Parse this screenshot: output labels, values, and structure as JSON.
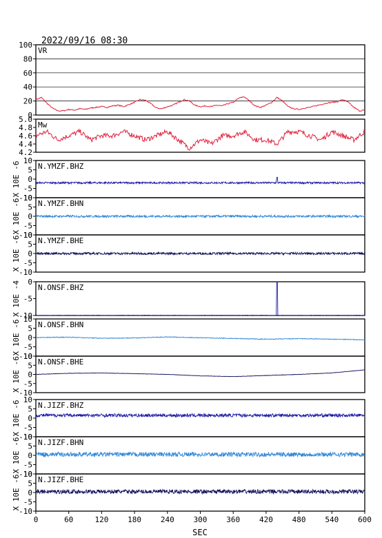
{
  "header": {
    "datetime": "2022/09/16 08:30"
  },
  "xaxis": {
    "label": "SEC",
    "range": [
      0,
      600
    ],
    "ticks": [
      "0",
      "60",
      "120",
      "180",
      "240",
      "300",
      "360",
      "420",
      "480",
      "540",
      "600"
    ]
  },
  "panels": [
    {
      "id": "vr",
      "label": "VR",
      "ylim": [
        0,
        100
      ],
      "ticks": [
        "100",
        "80",
        "60",
        "40",
        "20",
        "0"
      ],
      "tick_values": [
        100,
        80,
        60,
        40,
        20,
        0
      ],
      "grid": true,
      "color": "#e0203c"
    },
    {
      "id": "mw",
      "label": "Mw",
      "ylim": [
        4.2,
        5.0
      ],
      "ticks": [
        "5.0",
        "4.8",
        "4.6",
        "4.4",
        "4.2"
      ],
      "tick_values": [
        5.0,
        4.8,
        4.6,
        4.4,
        4.2
      ],
      "grid": false,
      "color": "#e0203c"
    },
    {
      "id": "ymz-bhz",
      "label": "N.YMZF.BHZ",
      "ylabel": "X 10E -6",
      "ylim": [
        -10,
        10
      ],
      "ticks": [
        "10",
        "5",
        "0",
        "-5",
        "-10"
      ],
      "tick_values": [
        10,
        5,
        0,
        -5,
        -10
      ],
      "color": "#1a1aa8"
    },
    {
      "id": "ymz-bhn",
      "label": "N.YMZF.BHN",
      "ylabel": "X 10E -6",
      "ylim": [
        -10,
        10
      ],
      "ticks": [
        "10",
        "5",
        "0",
        "-5",
        "-10"
      ],
      "tick_values": [
        10,
        5,
        0,
        -5,
        -10
      ],
      "color": "#2e86d8"
    },
    {
      "id": "ymz-bhe",
      "label": "N.YMZF.BHE",
      "ylabel": "X 10E -6",
      "ylim": [
        -10,
        10
      ],
      "ticks": [
        "10",
        "5",
        "0",
        "-5",
        "-10"
      ],
      "tick_values": [
        10,
        5,
        0,
        -5,
        -10
      ],
      "color": "#10105a"
    },
    {
      "id": "ons-bhz",
      "label": "N.ONSF.BHZ",
      "ylabel": "X 10E -4",
      "ylim": [
        -10,
        0
      ],
      "ticks": [
        "0",
        "-5",
        "-10"
      ],
      "tick_values": [
        0,
        -5,
        -10
      ],
      "color": "#1a1aa8"
    },
    {
      "id": "ons-bhn",
      "label": "N.ONSF.BHN",
      "ylabel": "X 10E -6",
      "ylim": [
        -10,
        10
      ],
      "ticks": [
        "10",
        "5",
        "0",
        "-5",
        "-10"
      ],
      "tick_values": [
        10,
        5,
        0,
        -5,
        -10
      ],
      "color": "#2e86d8"
    },
    {
      "id": "ons-bhe",
      "label": "N.ONSF.BHE",
      "ylabel": "X 10E -6",
      "ylim": [
        -10,
        10
      ],
      "ticks": [
        "10",
        "5",
        "0",
        "-5",
        "-10"
      ],
      "tick_values": [
        10,
        5,
        0,
        -5,
        -10
      ],
      "color": "#10105a"
    },
    {
      "id": "jiz-bhz",
      "label": "N.JIZF.BHZ",
      "ylabel": "X 10E -6",
      "ylim": [
        -10,
        10
      ],
      "ticks": [
        "10",
        "5",
        "0",
        "-5",
        "-10"
      ],
      "tick_values": [
        10,
        5,
        0,
        -5,
        -10
      ],
      "color": "#1a1aa8"
    },
    {
      "id": "jiz-bhn",
      "label": "N.JIZF.BHN",
      "ylabel": "X 10E -6",
      "ylim": [
        -10,
        10
      ],
      "ticks": [
        "10",
        "5",
        "0",
        "-5",
        "-10"
      ],
      "tick_values": [
        10,
        5,
        0,
        -5,
        -10
      ],
      "color": "#2e86d8"
    },
    {
      "id": "jiz-bhe",
      "label": "N.JIZF.BHE",
      "ylabel": "X 10E -6",
      "ylim": [
        -10,
        10
      ],
      "ticks": [
        "10",
        "5",
        "0",
        "-5",
        "-10"
      ],
      "tick_values": [
        10,
        5,
        0,
        -5,
        -10
      ],
      "color": "#10105a"
    }
  ],
  "chart_data": {
    "type": "line",
    "x_range": [
      0,
      600
    ],
    "series": [
      {
        "name": "VR",
        "x": [
          0,
          10,
          20,
          30,
          40,
          50,
          60,
          70,
          80,
          90,
          100,
          110,
          120,
          130,
          140,
          150,
          160,
          170,
          180,
          190,
          200,
          210,
          220,
          230,
          240,
          250,
          260,
          270,
          280,
          290,
          300,
          310,
          320,
          330,
          340,
          350,
          360,
          370,
          380,
          390,
          400,
          410,
          420,
          430,
          440,
          450,
          460,
          470,
          480,
          490,
          500,
          510,
          520,
          530,
          540,
          550,
          560,
          570,
          580,
          590,
          600
        ],
        "y": [
          22,
          25,
          17,
          10,
          6,
          6,
          8,
          7,
          9,
          8,
          10,
          11,
          12,
          11,
          13,
          14,
          12,
          15,
          18,
          22,
          21,
          16,
          10,
          9,
          12,
          14,
          18,
          22,
          20,
          14,
          12,
          13,
          12,
          14,
          13,
          16,
          18,
          24,
          26,
          20,
          13,
          11,
          14,
          18,
          25,
          20,
          12,
          9,
          8,
          10,
          11,
          13,
          15,
          17,
          18,
          19,
          22,
          18,
          11,
          6,
          7
        ]
      },
      {
        "name": "Mw",
        "x": [
          0,
          20,
          40,
          60,
          80,
          100,
          120,
          140,
          160,
          180,
          200,
          220,
          240,
          260,
          280,
          300,
          320,
          340,
          360,
          380,
          400,
          420,
          440,
          460,
          480,
          500,
          520,
          540,
          560,
          580,
          600
        ],
        "y": [
          4.6,
          4.7,
          4.5,
          4.6,
          4.7,
          4.5,
          4.6,
          4.6,
          4.7,
          4.6,
          4.5,
          4.6,
          4.7,
          4.5,
          4.3,
          4.5,
          4.4,
          4.6,
          4.6,
          4.7,
          4.5,
          4.5,
          4.4,
          4.7,
          4.7,
          4.6,
          4.5,
          4.7,
          4.6,
          4.5,
          4.7
        ]
      },
      {
        "name": "N.YMZF.BHZ",
        "x": [
          0,
          600
        ],
        "y": [
          -2,
          -2
        ],
        "spikes": [
          {
            "x": 440,
            "y": 1
          }
        ],
        "noise": 0.5
      },
      {
        "name": "N.YMZF.BHN",
        "x": [
          0,
          600
        ],
        "y": [
          0,
          0
        ],
        "noise": 0.6
      },
      {
        "name": "N.YMZF.BHE",
        "x": [
          0,
          600
        ],
        "y": [
          0,
          0
        ],
        "noise": 0.6
      },
      {
        "name": "N.ONSF.BHZ",
        "x": [
          0,
          600
        ],
        "y": [
          -10,
          -10
        ],
        "spikes": [
          {
            "x": 440,
            "y": 0
          }
        ],
        "noise": 0.1
      },
      {
        "name": "N.ONSF.BHN",
        "x": [
          0,
          60,
          120,
          180,
          240,
          300,
          360,
          420,
          480,
          540,
          600
        ],
        "y": [
          0,
          0.2,
          -0.4,
          -0.2,
          0.3,
          -0.1,
          -0.5,
          -0.9,
          -0.6,
          -0.9,
          -1.2
        ],
        "noise": 0.2
      },
      {
        "name": "N.ONSF.BHE",
        "x": [
          0,
          60,
          120,
          180,
          240,
          300,
          360,
          420,
          480,
          540,
          600
        ],
        "y": [
          0,
          0.6,
          0.8,
          0.4,
          0,
          -0.8,
          -1.2,
          -0.6,
          0,
          0.8,
          2.5
        ],
        "noise": 0.1
      },
      {
        "name": "N.JIZF.BHZ",
        "x": [
          0,
          600
        ],
        "y": [
          1.5,
          1.5
        ],
        "noise": 0.9
      },
      {
        "name": "N.JIZF.BHN",
        "x": [
          0,
          600
        ],
        "y": [
          0.5,
          0.5
        ],
        "noise": 1.2
      },
      {
        "name": "N.JIZF.BHE",
        "x": [
          0,
          600
        ],
        "y": [
          0.5,
          0.5
        ],
        "noise": 1.1
      }
    ]
  }
}
